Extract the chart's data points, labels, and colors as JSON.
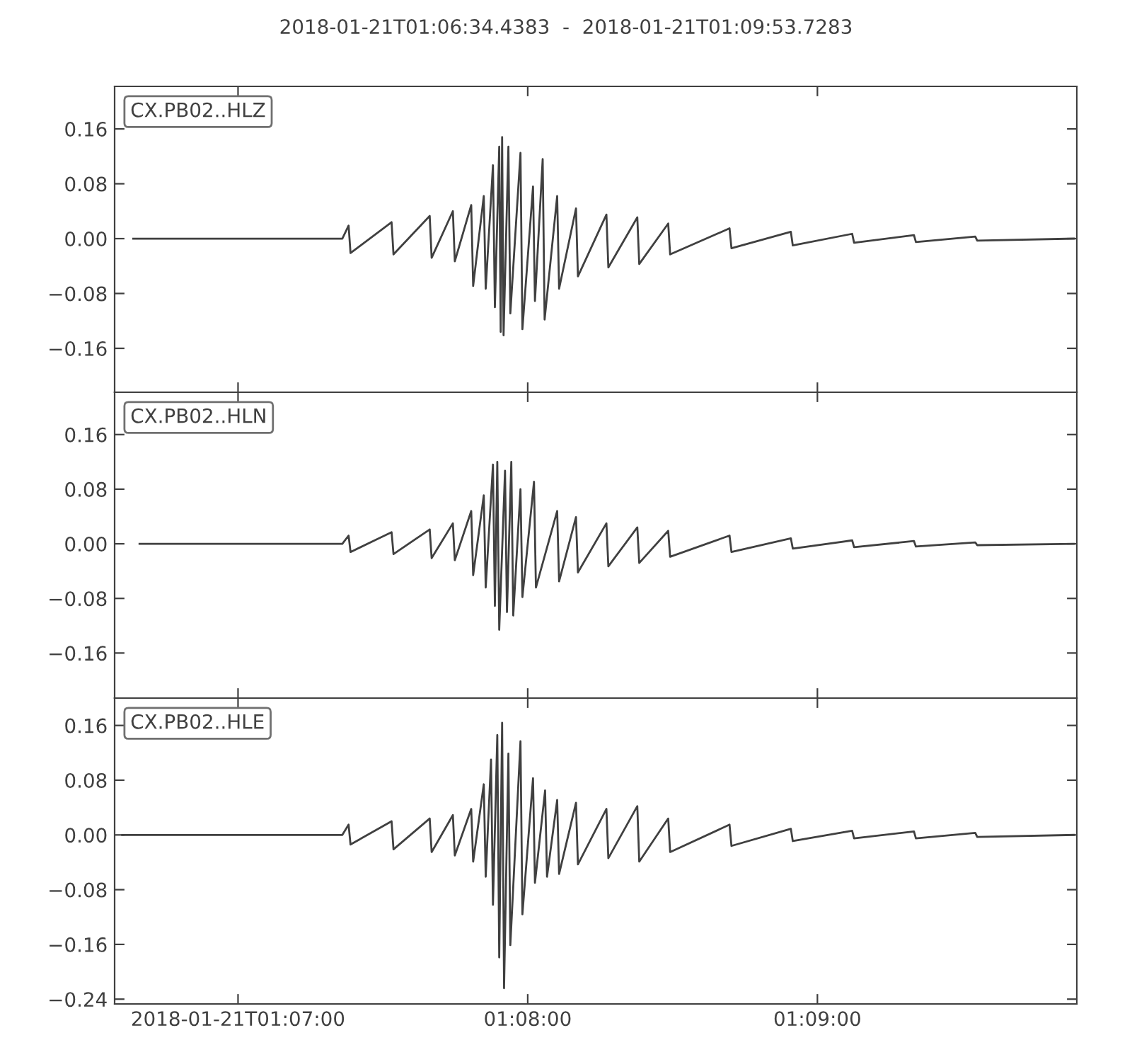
{
  "chart_data": [
    {
      "type": "line",
      "title": "2018-01-21T01:06:34.4383  -  2018-01-21T01:09:53.7283",
      "tick_labels": "y",
      "grid": false,
      "legend": "top left",
      "xlim": [
        "2018-01-21T01:06:34.4383",
        "2018-01-21T01:09:53.7283"
      ],
      "xticks": [
        {
          "value": "2018-01-21T01:07:00",
          "label": null
        },
        {
          "value": "2018-01-21T01:08:00",
          "label": null
        },
        {
          "value": "2018-01-21T01:09:00",
          "label": null
        }
      ],
      "ylim": [
        -0.224,
        0.222
      ],
      "yticks": [
        {
          "value": -0.16,
          "label": "−0.16"
        },
        {
          "value": -0.08,
          "label": "−0.08"
        },
        {
          "value": 0,
          "label": "0.00"
        },
        {
          "value": 0.08,
          "label": "0.08"
        },
        {
          "value": 0.16,
          "label": "0.16"
        }
      ],
      "series": [
        {
          "name": "CX.PB02..HLZ",
          "color": "#404040",
          "x": [
            "2018-01-21T01:06:38.3",
            "2018-01-21T01:07:21.6",
            "2018-01-21T01:07:22.9",
            "2018-01-21T01:07:23.3",
            "2018-01-21T01:07:31.8",
            "2018-01-21T01:07:32.2",
            "2018-01-21T01:07:39.7",
            "2018-01-21T01:07:40.1",
            "2018-01-21T01:07:44.5",
            "2018-01-21T01:07:44.9",
            "2018-01-21T01:07:48.3",
            "2018-01-21T01:07:48.7",
            "2018-01-21T01:07:50.9",
            "2018-01-21T01:07:51.3",
            "2018-01-21T01:07:52.8",
            "2018-01-21T01:07:53.2",
            "2018-01-21T01:07:54.1",
            "2018-01-21T01:07:54.4",
            "2018-01-21T01:07:54.7",
            "2018-01-21T01:07:55.0",
            "2018-01-21T01:07:56.0",
            "2018-01-21T01:07:56.4",
            "2018-01-21T01:07:58.5",
            "2018-01-21T01:07:58.9",
            "2018-01-21T01:08:01.1",
            "2018-01-21T01:08:01.5",
            "2018-01-21T01:08:03.1",
            "2018-01-21T01:08:03.5",
            "2018-01-21T01:08:06.1",
            "2018-01-21T01:08:06.5",
            "2018-01-21T01:08:10.0",
            "2018-01-21T01:08:10.4",
            "2018-01-21T01:08:16.3",
            "2018-01-21T01:08:16.7",
            "2018-01-21T01:08:22.7",
            "2018-01-21T01:08:23.1",
            "2018-01-21T01:08:29.1",
            "2018-01-21T01:08:29.5",
            "2018-01-21T01:08:41.8",
            "2018-01-21T01:08:42.2",
            "2018-01-21T01:08:54.5",
            "2018-01-21T01:08:54.9",
            "2018-01-21T01:09:07.2",
            "2018-01-21T01:09:07.6",
            "2018-01-21T01:09:20.0",
            "2018-01-21T01:09:20.4",
            "2018-01-21T01:09:32.7",
            "2018-01-21T01:09:33.1",
            "2018-01-21T01:09:53.1"
          ],
          "values": [
            0,
            0,
            0.019,
            -0.021,
            0.024,
            -0.023,
            0.033,
            -0.028,
            0.04,
            -0.033,
            0.049,
            -0.069,
            0.062,
            -0.073,
            0.107,
            -0.1,
            0.134,
            -0.136,
            0.148,
            -0.141,
            0.134,
            -0.109,
            0.125,
            -0.132,
            0.076,
            -0.091,
            0.116,
            -0.118,
            0.062,
            -0.073,
            0.044,
            -0.055,
            0.035,
            -0.042,
            0.031,
            -0.037,
            0.022,
            -0.023,
            0.015,
            -0.014,
            0.01,
            -0.01,
            0.007,
            -0.006,
            0.005,
            -0.005,
            0.003,
            -0.003,
            0
          ]
        }
      ]
    },
    {
      "type": "line",
      "tick_labels": "y",
      "grid": false,
      "legend": "top left",
      "xlim": [
        "2018-01-21T01:06:34.4383",
        "2018-01-21T01:09:53.7283"
      ],
      "xticks": [
        {
          "value": "2018-01-21T01:07:00",
          "label": null
        },
        {
          "value": "2018-01-21T01:08:00",
          "label": null
        },
        {
          "value": "2018-01-21T01:09:00",
          "label": null
        }
      ],
      "ylim": [
        -0.226,
        0.222
      ],
      "yticks": [
        {
          "value": -0.16,
          "label": "−0.16"
        },
        {
          "value": -0.08,
          "label": "−0.08"
        },
        {
          "value": 0,
          "label": "0.00"
        },
        {
          "value": 0.08,
          "label": "0.08"
        },
        {
          "value": 0.16,
          "label": "0.16"
        }
      ],
      "series": [
        {
          "name": "CX.PB02..HLN",
          "color": "#404040",
          "x": [
            "2018-01-21T01:06:39.6",
            "2018-01-21T01:07:21.6",
            "2018-01-21T01:07:22.9",
            "2018-01-21T01:07:23.3",
            "2018-01-21T01:07:31.8",
            "2018-01-21T01:07:32.2",
            "2018-01-21T01:07:39.7",
            "2018-01-21T01:07:40.1",
            "2018-01-21T01:07:44.5",
            "2018-01-21T01:07:44.9",
            "2018-01-21T01:07:48.3",
            "2018-01-21T01:07:48.7",
            "2018-01-21T01:07:50.9",
            "2018-01-21T01:07:51.3",
            "2018-01-21T01:07:52.8",
            "2018-01-21T01:07:53.2",
            "2018-01-21T01:07:53.7",
            "2018-01-21T01:07:54.1",
            "2018-01-21T01:07:55.3",
            "2018-01-21T01:07:55.7",
            "2018-01-21T01:07:56.6",
            "2018-01-21T01:07:57.0",
            "2018-01-21T01:07:58.5",
            "2018-01-21T01:07:58.9",
            "2018-01-21T01:08:01.3",
            "2018-01-21T01:08:01.7",
            "2018-01-21T01:08:06.1",
            "2018-01-21T01:08:06.5",
            "2018-01-21T01:08:10.0",
            "2018-01-21T01:08:10.4",
            "2018-01-21T01:08:16.3",
            "2018-01-21T01:08:16.7",
            "2018-01-21T01:08:22.7",
            "2018-01-21T01:08:23.1",
            "2018-01-21T01:08:29.1",
            "2018-01-21T01:08:29.5",
            "2018-01-21T01:08:41.8",
            "2018-01-21T01:08:42.2",
            "2018-01-21T01:08:54.5",
            "2018-01-21T01:08:54.9",
            "2018-01-21T01:09:07.2",
            "2018-01-21T01:09:07.6",
            "2018-01-21T01:09:20.0",
            "2018-01-21T01:09:20.4",
            "2018-01-21T01:09:32.7",
            "2018-01-21T01:09:33.1",
            "2018-01-21T01:09:53.1"
          ],
          "values": [
            0,
            0,
            0.012,
            -0.012,
            0.017,
            -0.015,
            0.021,
            -0.021,
            0.03,
            -0.024,
            0.048,
            -0.046,
            0.071,
            -0.064,
            0.116,
            -0.091,
            0.12,
            -0.126,
            0.107,
            -0.1,
            0.12,
            -0.105,
            0.08,
            -0.078,
            0.091,
            -0.064,
            0.048,
            -0.055,
            0.039,
            -0.042,
            0.03,
            -0.033,
            0.024,
            -0.028,
            0.019,
            -0.019,
            0.012,
            -0.012,
            0.008,
            -0.007,
            0.005,
            -0.005,
            0.004,
            -0.004,
            0.002,
            -0.002,
            0
          ]
        }
      ]
    },
    {
      "type": "line",
      "grid": false,
      "legend": "top left",
      "xlim": [
        "2018-01-21T01:06:34.4383",
        "2018-01-21T01:09:53.7283"
      ],
      "xticks": [
        {
          "value": "2018-01-21T01:07:00",
          "label": "2018-01-21T01:07:00"
        },
        {
          "value": "2018-01-21T01:08:00",
          "label": "01:08:00"
        },
        {
          "value": "2018-01-21T01:09:00",
          "label": "01:09:00"
        }
      ],
      "ylim": [
        -0.247,
        0.2
      ],
      "yticks": [
        {
          "value": -0.24,
          "label": "−0.24"
        },
        {
          "value": -0.16,
          "label": "−0.16"
        },
        {
          "value": -0.08,
          "label": "−0.08"
        },
        {
          "value": 0,
          "label": "0.00"
        },
        {
          "value": 0.08,
          "label": "0.08"
        },
        {
          "value": 0.16,
          "label": "0.16"
        }
      ],
      "series": [
        {
          "name": "CX.PB02..HLE",
          "color": "#404040",
          "x": [
            "2018-01-21T01:06:36.0",
            "2018-01-21T01:07:21.6",
            "2018-01-21T01:07:22.9",
            "2018-01-21T01:07:23.3",
            "2018-01-21T01:07:31.8",
            "2018-01-21T01:07:32.2",
            "2018-01-21T01:07:39.7",
            "2018-01-21T01:07:40.1",
            "2018-01-21T01:07:44.5",
            "2018-01-21T01:07:44.9",
            "2018-01-21T01:07:48.3",
            "2018-01-21T01:07:48.7",
            "2018-01-21T01:07:50.9",
            "2018-01-21T01:07:51.3",
            "2018-01-21T01:07:52.4",
            "2018-01-21T01:07:52.8",
            "2018-01-21T01:07:53.7",
            "2018-01-21T01:07:54.1",
            "2018-01-21T01:07:54.7",
            "2018-01-21T01:07:55.1",
            "2018-01-21T01:07:56.0",
            "2018-01-21T01:07:56.4",
            "2018-01-21T01:07:58.5",
            "2018-01-21T01:07:58.9",
            "2018-01-21T01:08:01.1",
            "2018-01-21T01:08:01.5",
            "2018-01-21T01:08:03.6",
            "2018-01-21T01:08:04.0",
            "2018-01-21T01:08:06.1",
            "2018-01-21T01:08:06.5",
            "2018-01-21T01:08:10.0",
            "2018-01-21T01:08:10.4",
            "2018-01-21T01:08:16.3",
            "2018-01-21T01:08:16.7",
            "2018-01-21T01:08:22.7",
            "2018-01-21T01:08:23.1",
            "2018-01-21T01:08:29.1",
            "2018-01-21T01:08:29.5",
            "2018-01-21T01:08:41.8",
            "2018-01-21T01:08:42.2",
            "2018-01-21T01:08:54.5",
            "2018-01-21T01:08:54.9",
            "2018-01-21T01:09:07.2",
            "2018-01-21T01:09:07.6",
            "2018-01-21T01:09:20.0",
            "2018-01-21T01:09:20.4",
            "2018-01-21T01:09:32.7",
            "2018-01-21T01:09:33.1",
            "2018-01-21T01:09:53.1"
          ],
          "values": [
            0,
            0,
            0.015,
            -0.014,
            0.02,
            -0.021,
            0.024,
            -0.025,
            0.029,
            -0.03,
            0.038,
            -0.039,
            0.074,
            -0.061,
            0.11,
            -0.102,
            0.146,
            -0.179,
            0.164,
            -0.224,
            0.119,
            -0.161,
            0.137,
            -0.116,
            0.083,
            -0.07,
            0.065,
            -0.061,
            0.051,
            -0.057,
            0.047,
            -0.043,
            0.038,
            -0.034,
            0.042,
            -0.039,
            0.024,
            -0.025,
            0.015,
            -0.016,
            0.009,
            -0.009,
            0.006,
            -0.005,
            0.005,
            -0.005,
            0.003,
            -0.003,
            0
          ]
        }
      ]
    }
  ]
}
